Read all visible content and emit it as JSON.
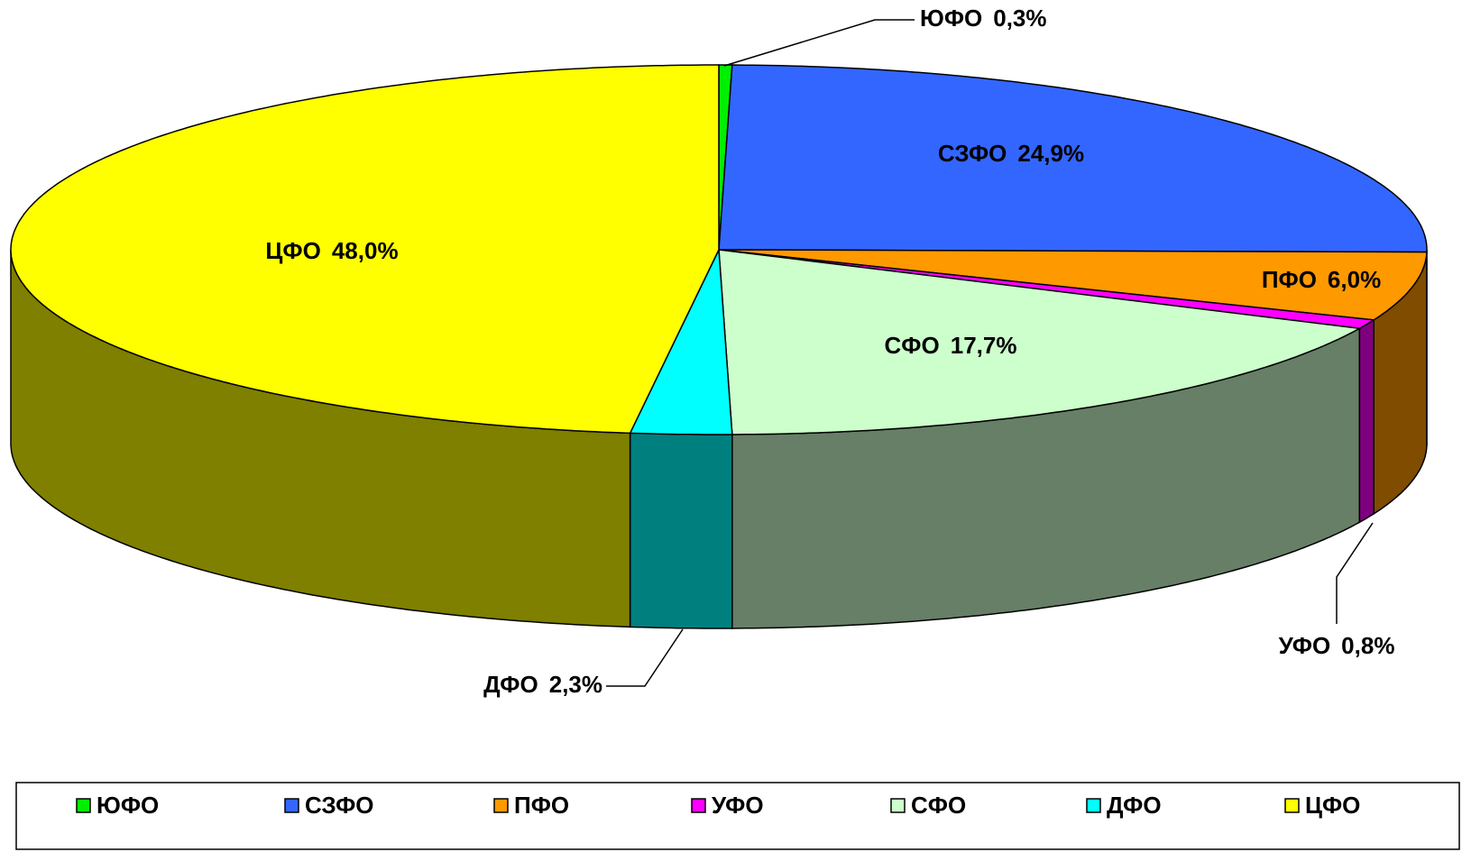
{
  "chart_data": {
    "type": "pie3d",
    "categories": [
      "ЮФО",
      "СЗФО",
      "ПФО",
      "УФО",
      "СФО",
      "ДФО",
      "ЦФО"
    ],
    "values": [
      0.3,
      24.9,
      6.0,
      0.8,
      17.7,
      2.3,
      48.0
    ],
    "value_labels": [
      "0,3%",
      "24,9%",
      "6,0%",
      "0,8%",
      "17,7%",
      "2,3%",
      "48,0%"
    ],
    "colors": [
      "#00ee00",
      "#3366ff",
      "#ff9900",
      "#ff00ff",
      "#ccffcc",
      "#00ffff",
      "#ffff00"
    ],
    "legend": "bottom"
  }
}
